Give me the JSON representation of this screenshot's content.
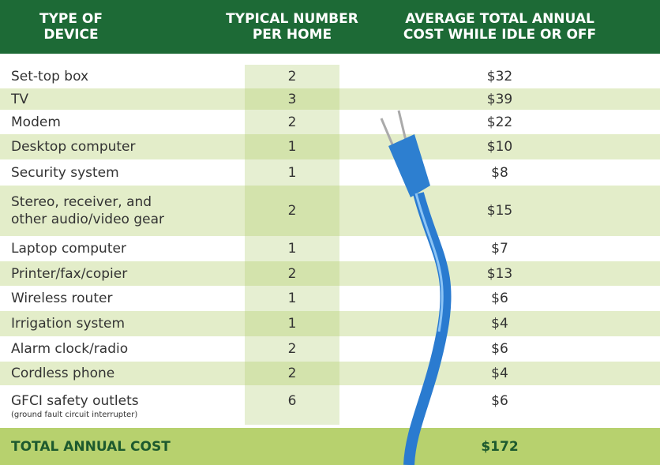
{
  "header": {
    "columns": [
      [
        "TYPE OF",
        "DEVICE"
      ],
      [
        "TYPICAL NUMBER",
        "PER HOME"
      ],
      [
        "AVERAGE TOTAL ANNUAL",
        "COST WHILE IDLE OR OFF"
      ]
    ]
  },
  "rows": [
    {
      "device": [
        "Set-top box"
      ],
      "number": "2",
      "cost": "$32"
    },
    {
      "device": [
        "TV"
      ],
      "number": "3",
      "cost": "$39"
    },
    {
      "device": [
        "Modem"
      ],
      "number": "2",
      "cost": "$22"
    },
    {
      "device": [
        "Desktop computer"
      ],
      "number": "1",
      "cost": "$10"
    },
    {
      "device": [
        "Security system"
      ],
      "number": "1",
      "cost": "$8"
    },
    {
      "device": [
        "Stereo, receiver, and",
        "other audio/video gear"
      ],
      "number": "2",
      "cost": "$15"
    },
    {
      "device": [
        "Laptop computer"
      ],
      "number": "1",
      "cost": "$7"
    },
    {
      "device": [
        "Printer/fax/copier"
      ],
      "number": "2",
      "cost": "$13"
    },
    {
      "device": [
        "Wireless router"
      ],
      "number": "1",
      "cost": "$6"
    },
    {
      "device": [
        "Irrigation system"
      ],
      "number": "1",
      "cost": "$4"
    },
    {
      "device": [
        "Alarm clock/radio"
      ],
      "number": "2",
      "cost": "$6"
    },
    {
      "device": [
        "Cordless phone"
      ],
      "number": "2",
      "cost": "$4"
    },
    {
      "device": [
        "GFCI safety outlets"
      ],
      "note": "(ground fault circuit interrupter)",
      "number": "6",
      "cost": "$6"
    }
  ],
  "total": {
    "label": "TOTAL ANNUAL COST",
    "cost": "$172"
  }
}
